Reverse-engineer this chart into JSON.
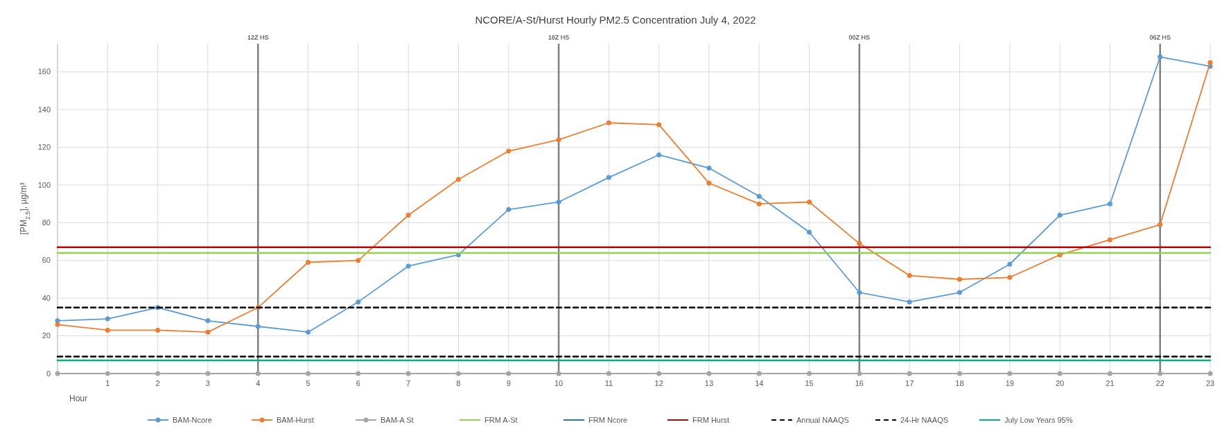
{
  "chart_data": {
    "type": "line",
    "title": "NCORE/A-St/Hurst Hourly PM2.5 Concentration July 4, 2022",
    "xlabel": "Hour",
    "ylabel": "[PM$_{2.5}$], µg/m³",
    "x": [
      0,
      1,
      2,
      3,
      4,
      5,
      6,
      7,
      8,
      9,
      10,
      11,
      12,
      13,
      14,
      15,
      16,
      17,
      18,
      19,
      20,
      21,
      22,
      23
    ],
    "xlim": [
      0,
      23
    ],
    "xticks": [
      {
        "value": 0,
        "label": null
      },
      1,
      2,
      3,
      4,
      5,
      6,
      7,
      8,
      9,
      10,
      11,
      12,
      13,
      14,
      15,
      16,
      17,
      18,
      19,
      20,
      21,
      22,
      23
    ],
    "ylim": [
      0,
      175
    ],
    "yticks": [
      0,
      20,
      40,
      60,
      80,
      100,
      120,
      140,
      160
    ],
    "grid": true,
    "legend": "bottom",
    "marker": "circle",
    "line_style": "solid",
    "series": [
      {
        "name": "BAM-Ncore",
        "color": "#5b9bd5",
        "values": [
          28,
          29,
          35,
          28,
          25,
          22,
          38,
          57,
          63,
          87,
          91,
          104,
          116,
          109,
          94,
          75,
          43,
          38,
          43,
          58,
          84,
          90,
          168,
          163
        ]
      },
      {
        "name": "BAM-Hurst",
        "color": "#ed7d31",
        "values": [
          26,
          23,
          23,
          22,
          35,
          59,
          60,
          84,
          103,
          118,
          124,
          133,
          132,
          101,
          90,
          91,
          69,
          52,
          50,
          51,
          63,
          71,
          79,
          165
        ]
      },
      {
        "name": "BAM-A St",
        "color": "#a5a5a5",
        "values": [
          0,
          0,
          0,
          0,
          0,
          0,
          0,
          0,
          0,
          0,
          0,
          0,
          0,
          0,
          0,
          0,
          0,
          0,
          0,
          0,
          0,
          0,
          0,
          0
        ]
      },
      {
        "name": "FRM A-St",
        "color": "#92d050",
        "marker": "none",
        "values": [
          64,
          64,
          64,
          64,
          64,
          64,
          64,
          64,
          64,
          64,
          64,
          64,
          64,
          64,
          64,
          64,
          64,
          64,
          64,
          64,
          64,
          64,
          64,
          64
        ]
      },
      {
        "name": "FRM Ncore",
        "color": "#2e75b6",
        "marker": "none",
        "values": [
          null,
          null,
          null,
          null,
          null,
          null,
          null,
          null,
          null,
          null,
          null,
          null,
          null,
          null,
          null,
          null,
          null,
          null,
          null,
          null,
          null,
          null,
          null,
          null
        ]
      },
      {
        "name": "FRM Hurst",
        "color": "#c00000",
        "marker": "none",
        "values": [
          67,
          67,
          67,
          67,
          67,
          67,
          67,
          67,
          67,
          67,
          67,
          67,
          67,
          67,
          67,
          67,
          67,
          67,
          67,
          67,
          67,
          67,
          67,
          67
        ]
      },
      {
        "name": "Annual NAAQS",
        "color": "#000000",
        "marker": "none",
        "line_style": "dashed",
        "values": [
          9,
          9,
          9,
          9,
          9,
          9,
          9,
          9,
          9,
          9,
          9,
          9,
          9,
          9,
          9,
          9,
          9,
          9,
          9,
          9,
          9,
          9,
          9,
          9
        ]
      },
      {
        "name": "24-Hr NAAQS",
        "color": "#000000",
        "marker": "none",
        "line_style": "dashed",
        "values": [
          35,
          35,
          35,
          35,
          35,
          35,
          35,
          35,
          35,
          35,
          35,
          35,
          35,
          35,
          35,
          35,
          35,
          35,
          35,
          35,
          35,
          35,
          35,
          35
        ]
      },
      {
        "name": "July Low Years 95%",
        "color": "#00b07a",
        "marker": "none",
        "values": [
          7,
          7,
          7,
          7,
          7,
          7,
          7,
          7,
          7,
          7,
          7,
          7,
          7,
          7,
          7,
          7,
          7,
          7,
          7,
          7,
          7,
          7,
          7,
          7
        ]
      }
    ],
    "ref_lines": [
      {
        "axis": "x",
        "value": 4,
        "label": "12Z HS",
        "color": "#7f7f7f"
      },
      {
        "axis": "x",
        "value": 10,
        "label": "18Z HS",
        "color": "#7f7f7f"
      },
      {
        "axis": "x",
        "value": 16,
        "label": "00Z HS",
        "color": "#7f7f7f"
      },
      {
        "axis": "x",
        "value": 22,
        "label": "06Z HS",
        "color": "#7f7f7f"
      }
    ]
  }
}
